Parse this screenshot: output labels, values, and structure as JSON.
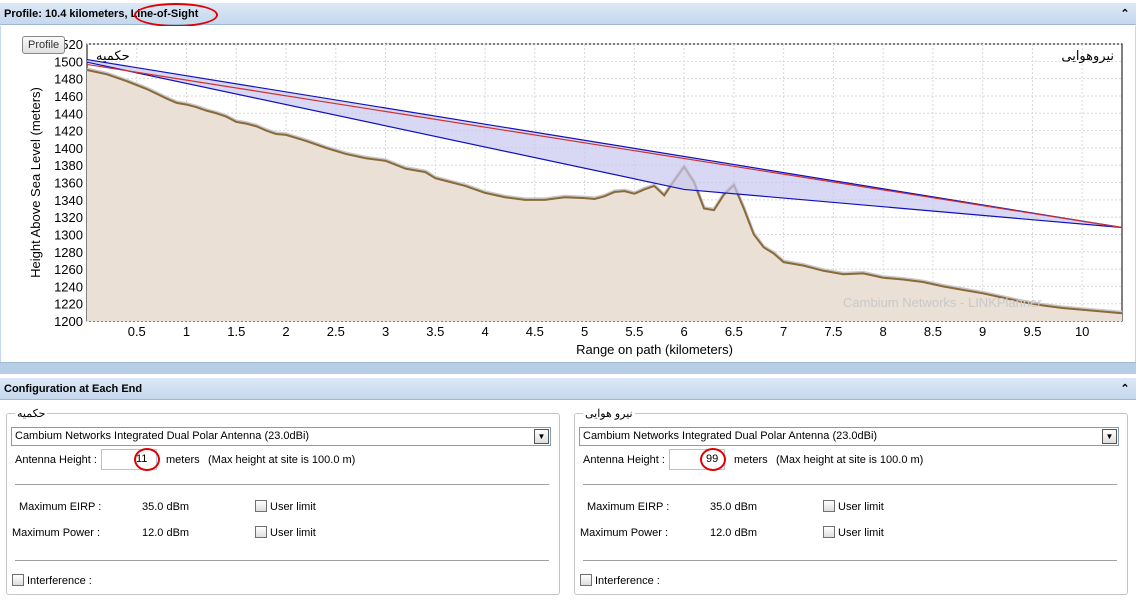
{
  "profile_header": {
    "title_prefix": "Profile: 10.4 kilometers, ",
    "title_los": "Line-of-Sight",
    "collapse_glyph": "⌃"
  },
  "tooltip": "Profile",
  "chart_data": {
    "type": "area",
    "title": "",
    "xlabel": "Range on path (kilometers)",
    "ylabel": "Height Above Sea Level (meters)",
    "xlim": [
      0,
      10.4
    ],
    "ylim": [
      1200,
      1520
    ],
    "x_ticks": [
      "0.5",
      "1",
      "1.5",
      "2",
      "2.5",
      "3",
      "3.5",
      "4",
      "4.5",
      "5",
      "5.5",
      "6",
      "6.5",
      "7",
      "7.5",
      "8",
      "8.5",
      "9",
      "9.5",
      "10"
    ],
    "y_ticks": [
      "1200",
      "1220",
      "1240",
      "1260",
      "1280",
      "1300",
      "1320",
      "1340",
      "1360",
      "1380",
      "1400",
      "1420",
      "1440",
      "1460",
      "1480",
      "1500",
      "1520"
    ],
    "left_site_label": "حکمیه",
    "right_site_label": "نیروهوایی",
    "watermark": "Cambium Networks - LINKPlanner",
    "grid": true,
    "terrain": {
      "x": [
        0,
        0.2,
        0.4,
        0.6,
        0.8,
        0.9,
        1.0,
        1.1,
        1.2,
        1.3,
        1.4,
        1.5,
        1.6,
        1.7,
        1.8,
        1.9,
        2.0,
        2.2,
        2.4,
        2.6,
        2.8,
        3.0,
        3.2,
        3.4,
        3.5,
        3.6,
        3.8,
        4.0,
        4.2,
        4.4,
        4.6,
        4.8,
        5.0,
        5.1,
        5.2,
        5.3,
        5.4,
        5.5,
        5.6,
        5.7,
        5.8,
        5.9,
        6.0,
        6.1,
        6.2,
        6.3,
        6.4,
        6.5,
        6.6,
        6.7,
        6.8,
        6.9,
        7.0,
        7.2,
        7.4,
        7.6,
        7.8,
        8.0,
        8.2,
        8.4,
        8.6,
        8.8,
        9.0,
        9.2,
        9.4,
        9.6,
        9.8,
        10.0,
        10.2,
        10.4
      ],
      "y": [
        1490,
        1485,
        1477,
        1468,
        1457,
        1452,
        1450,
        1447,
        1443,
        1440,
        1436,
        1430,
        1428,
        1425,
        1420,
        1416,
        1415,
        1408,
        1400,
        1393,
        1388,
        1385,
        1376,
        1372,
        1365,
        1362,
        1356,
        1348,
        1343,
        1340,
        1340,
        1343,
        1342,
        1341,
        1344,
        1349,
        1350,
        1347,
        1352,
        1356,
        1345,
        1362,
        1378,
        1360,
        1330,
        1328,
        1346,
        1357,
        1330,
        1300,
        1285,
        1278,
        1268,
        1264,
        1258,
        1254,
        1255,
        1250,
        1248,
        1245,
        1240,
        1236,
        1232,
        1227,
        1222,
        1218,
        1215,
        1213,
        1211,
        1209
      ]
    },
    "fresnel_upper": {
      "x": [
        0,
        10.4
      ],
      "y": [
        1502,
        1308
      ]
    },
    "fresnel_lower": {
      "x": [
        0,
        6.0,
        10.4
      ],
      "y": [
        1499,
        1352,
        1308
      ]
    },
    "los_line": {
      "x": [
        0,
        10.4
      ],
      "y": [
        1501,
        1308
      ]
    },
    "colors": {
      "fresnel_edge": "#1010c0",
      "fresnel_fill": "#c8c8f0",
      "los": "#d03030",
      "terrain_fill": "#eae0d6",
      "terrain_line": "#8b6a3a"
    }
  },
  "config_header": {
    "title": "Configuration at Each End",
    "collapse_glyph": "⌃"
  },
  "ends": [
    {
      "name": "حکمیه",
      "antenna": "Cambium Networks Integrated Dual Polar Antenna (23.0dBi)",
      "antenna_height_label": "Antenna Height :",
      "antenna_height_value": "11",
      "meters_label": "meters",
      "max_height_note": "(Max height at site is 100.0 m)",
      "max_eirp_label": "Maximum EIRP :",
      "max_eirp_value": "35.0 dBm",
      "max_power_label": "Maximum Power :",
      "max_power_value": "12.0 dBm",
      "user_limit_label": "User limit",
      "interference_label": "Interference :"
    },
    {
      "name": "نیرو هوایی",
      "antenna": "Cambium Networks Integrated Dual Polar Antenna (23.0dBi)",
      "antenna_height_label": "Antenna Height :",
      "antenna_height_value": "99",
      "meters_label": "meters",
      "max_height_note": "(Max height at site is 100.0 m)",
      "max_eirp_label": "Maximum EIRP :",
      "max_eirp_value": "35.0 dBm",
      "max_power_label": "Maximum Power :",
      "max_power_value": "12.0 dBm",
      "user_limit_label": "User limit",
      "interference_label": "Interference :"
    }
  ]
}
